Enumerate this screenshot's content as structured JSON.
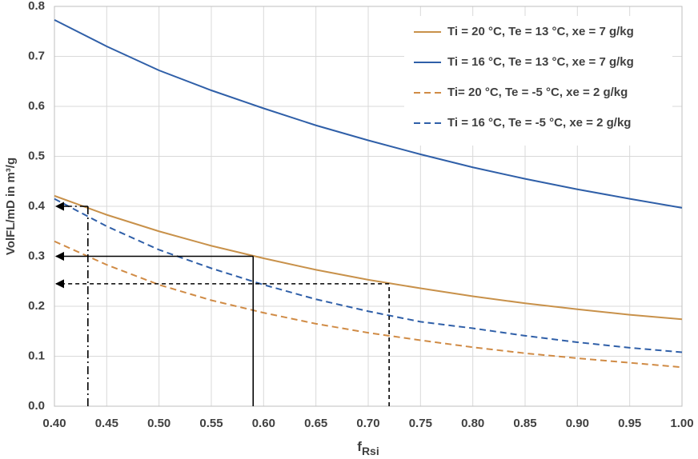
{
  "chart_data": {
    "type": "line",
    "y_label": "VolFL/mD in m³/g",
    "x_label": "f",
    "x_label_sub": "Rsi",
    "x": [
      0.4,
      0.45,
      0.5,
      0.55,
      0.6,
      0.65,
      0.7,
      0.75,
      0.8,
      0.85,
      0.9,
      0.95,
      1.0
    ],
    "series": [
      {
        "name": "Ti = 20 °C, Te = 13 °C, xe = 7 g/kg",
        "color": "#c8914a",
        "dash": false,
        "values": [
          0.421,
          0.383,
          0.35,
          0.321,
          0.296,
          0.273,
          0.253,
          0.236,
          0.22,
          0.206,
          0.194,
          0.183,
          0.174
        ]
      },
      {
        "name": "Ti = 16 °C, Te = 13 °C, xe = 7 g/kg",
        "color": "#2f5fa8",
        "dash": false,
        "values": [
          0.773,
          0.72,
          0.672,
          0.632,
          0.596,
          0.562,
          0.532,
          0.504,
          0.478,
          0.455,
          0.434,
          0.415,
          0.397
        ]
      },
      {
        "name": "Ti= 20 °C, Te = -5 °C, xe = 2 g/kg",
        "color": "#d08b45",
        "dash": true,
        "values": [
          0.33,
          0.283,
          0.243,
          0.212,
          0.187,
          0.165,
          0.147,
          0.132,
          0.118,
          0.106,
          0.096,
          0.087,
          0.078
        ]
      },
      {
        "name": "Ti = 16 °C, Te = -5 °C, xe = 2 g/kg",
        "color": "#2f5fa8",
        "dash": true,
        "values": [
          0.415,
          0.36,
          0.313,
          0.276,
          0.243,
          0.214,
          0.19,
          0.169,
          0.156,
          0.141,
          0.128,
          0.117,
          0.108
        ]
      }
    ],
    "guides": [
      {
        "x": 0.59,
        "y": 0.3,
        "style": "solid"
      },
      {
        "x": 0.72,
        "y": 0.245,
        "style": "dashed"
      },
      {
        "x": 0.432,
        "y": 0.4,
        "style": "dashdot"
      }
    ],
    "xlim": [
      0.4,
      1.0
    ],
    "ylim": [
      0,
      0.8
    ],
    "xticks": [
      {
        "value": 0.4,
        "label": "0.40"
      },
      0.45,
      {
        "value": 0.5,
        "label": "0.50"
      },
      0.55,
      {
        "value": 0.6,
        "label": "0.60"
      },
      0.65,
      {
        "value": 0.7,
        "label": "0.70"
      },
      0.75,
      {
        "value": 0.8,
        "label": "0.80"
      },
      0.85,
      {
        "value": 0.9,
        "label": "0.90"
      },
      0.95,
      {
        "value": 1.0,
        "label": "1.00"
      }
    ],
    "yticks": [
      {
        "value": 0,
        "label": "0.0"
      },
      0.1,
      0.2,
      0.3,
      0.4,
      0.5,
      0.6,
      0.7,
      0.8
    ],
    "grid": true,
    "legend": "upper right"
  }
}
